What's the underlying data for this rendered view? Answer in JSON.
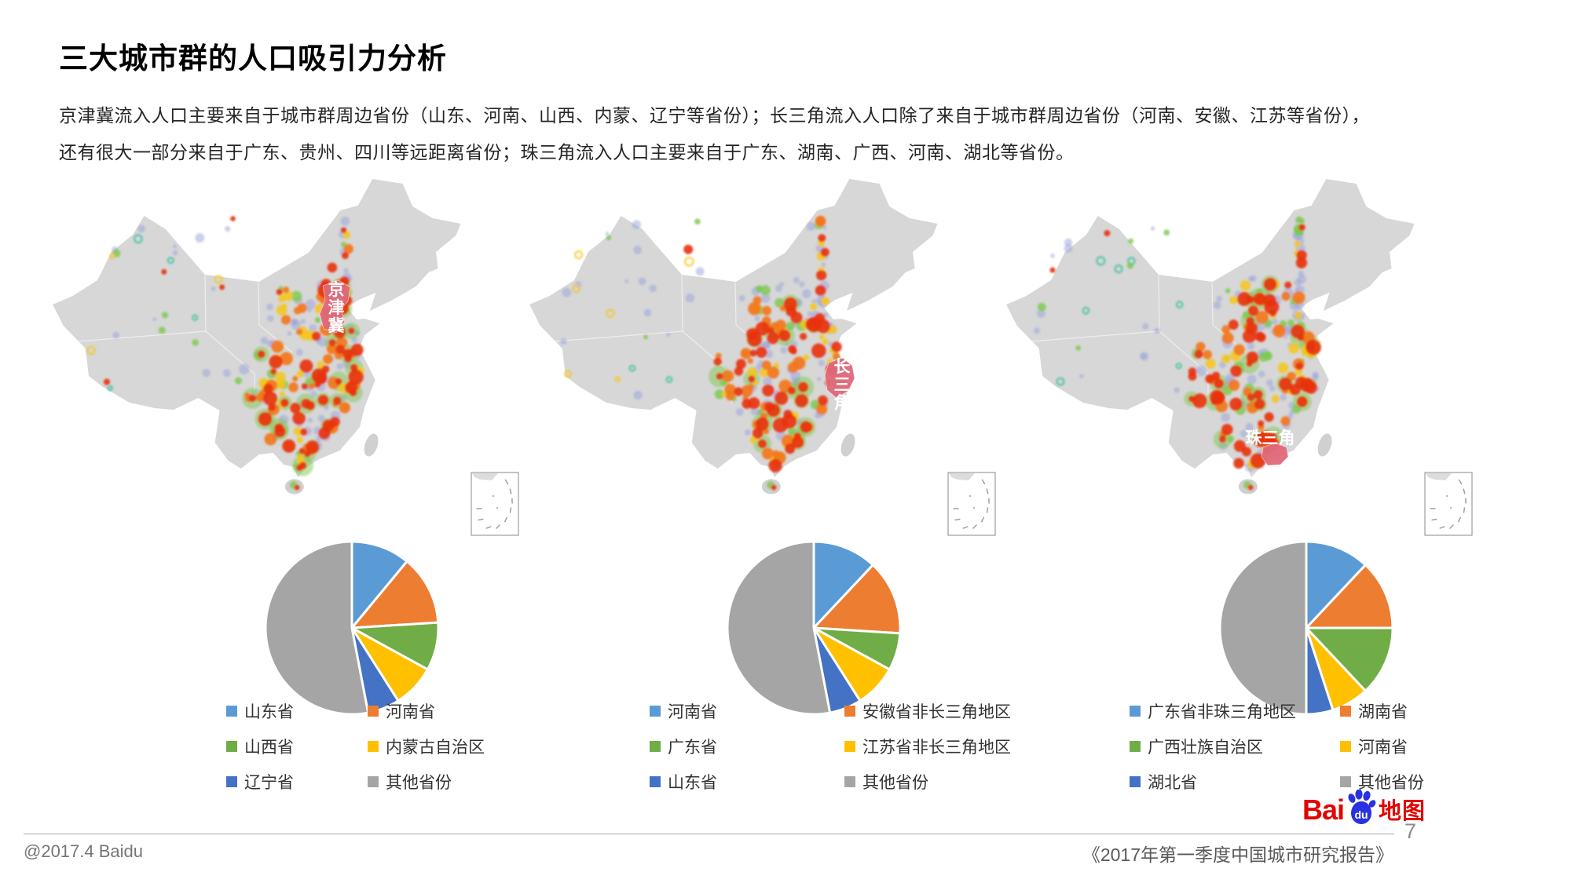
{
  "slide": {
    "title": "三大城市群的人口吸引力分析",
    "description_lines": [
      "京津冀流入人口主要来自于城市群周边省份（山东、河南、山西、内蒙、辽宁等省份）；长三角流入人口除了来自于城市群周边省份（河南、安徽、江苏等省份），",
      "还有很大一部分来自于广东、贵州、四川等远距离省份；珠三角流入人口主要来自于广东、湖南、广西、河南、湖北等省份。"
    ]
  },
  "maps": [
    {
      "region_label": "京津冀",
      "label_orientation": "vertical"
    },
    {
      "region_label": "长三角",
      "label_orientation": "vertical"
    },
    {
      "region_label": "珠三角",
      "label_orientation": "horizontal"
    }
  ],
  "chart_data": [
    {
      "type": "pie",
      "cluster": "京津冀",
      "labels": [
        "山东省",
        "河南省",
        "山西省",
        "内蒙古自治区",
        "辽宁省",
        "其他省份"
      ],
      "values": [
        11,
        13,
        9,
        8,
        6,
        53
      ],
      "colors": [
        "#5B9BD5",
        "#ED7D31",
        "#70AD47",
        "#FFC000",
        "#4472C4",
        "#A5A5A5"
      ],
      "legend_position": "bottom",
      "start_angle_deg": -90,
      "direction": "clockwise"
    },
    {
      "type": "pie",
      "cluster": "长三角",
      "labels": [
        "河南省",
        "安徽省非长三角地区",
        "广东省",
        "江苏省非长三角地区",
        "山东省",
        "其他省份"
      ],
      "values": [
        12,
        14,
        7,
        8,
        6,
        53
      ],
      "colors": [
        "#5B9BD5",
        "#ED7D31",
        "#70AD47",
        "#FFC000",
        "#4472C4",
        "#A5A5A5"
      ],
      "legend_position": "bottom",
      "start_angle_deg": -90,
      "direction": "clockwise"
    },
    {
      "type": "pie",
      "cluster": "珠三角",
      "labels": [
        "广东省非珠三角地区",
        "湖南省",
        "广西壮族自治区",
        "河南省",
        "湖北省",
        "其他省份"
      ],
      "values": [
        12,
        13,
        13,
        7,
        5,
        50
      ],
      "colors": [
        "#5B9BD5",
        "#ED7D31",
        "#70AD47",
        "#FFC000",
        "#4472C4",
        "#A5A5A5"
      ],
      "legend_position": "bottom",
      "start_angle_deg": -90,
      "direction": "clockwise"
    }
  ],
  "colors": {
    "cluster_highlight": "#E0697A",
    "map_base": "#D7D7D7",
    "heat_red": "#E8330F",
    "heat_orange": "#F4761B",
    "heat_yellow": "#F6C51A",
    "heat_green": "#7CC94E",
    "heat_teal": "#3BBF9E",
    "heat_purple": "#98A2D9"
  },
  "footer": {
    "left_text": "@2017.4 Baidu",
    "report_title": "《2017年第一季度中国城市研究报告》",
    "page_number": "7"
  },
  "logo": {
    "text_bai": "Bai",
    "text_du": "du",
    "text_suffix": "地图",
    "brand_red": "#E10601",
    "brand_blue": "#2932E1"
  }
}
